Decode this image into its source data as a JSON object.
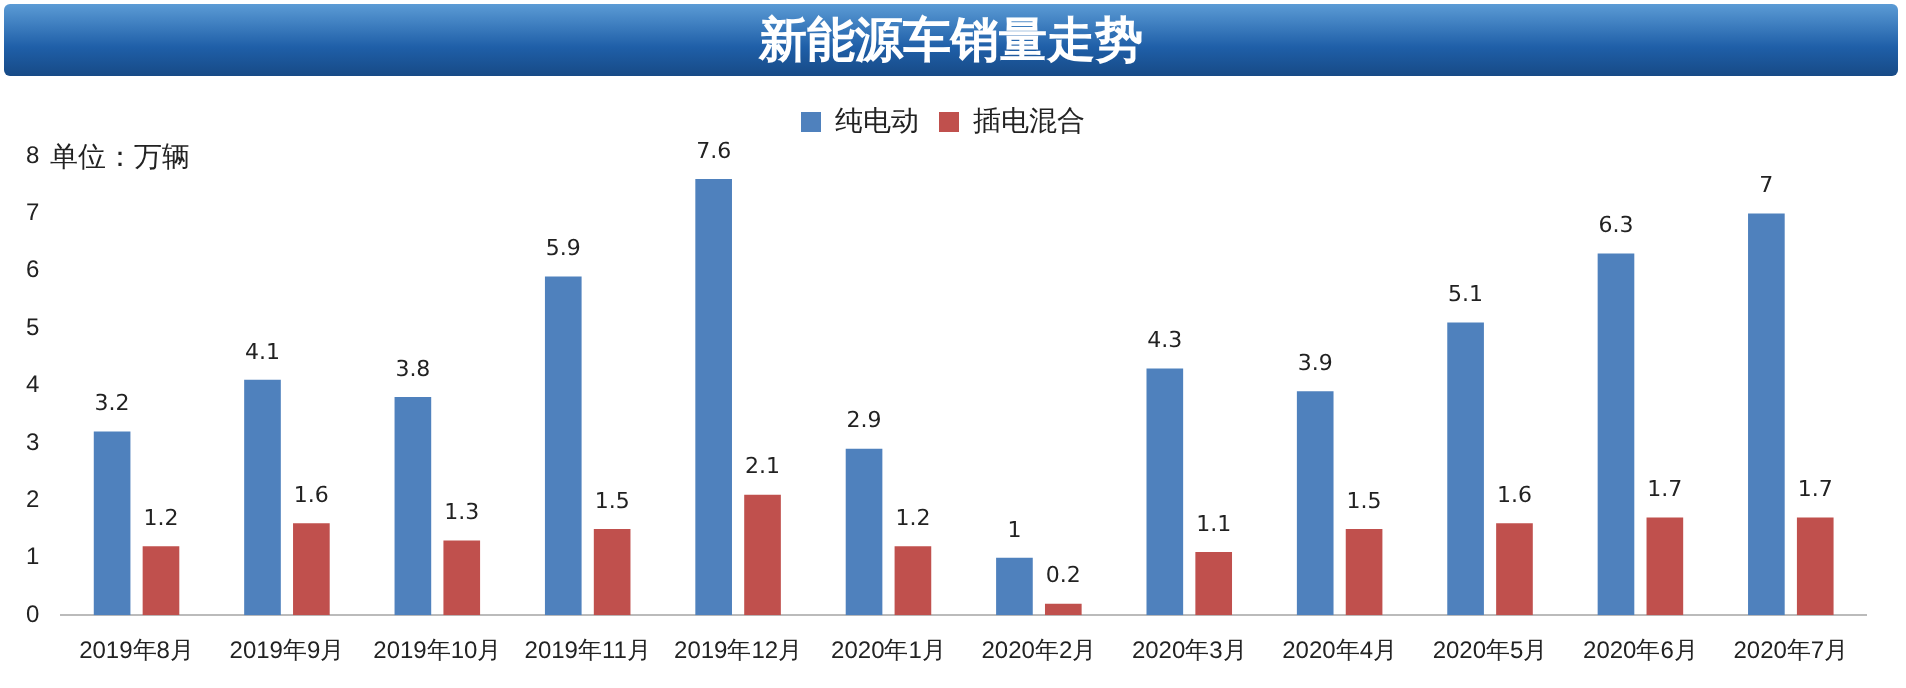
{
  "chart_data": {
    "type": "bar",
    "title": "新能源车销量走势",
    "ylabel": "单位：万辆",
    "categories": [
      "2019年8月",
      "2019年9月",
      "2019年10月",
      "2019年11月",
      "2019年12月",
      "2020年1月",
      "2020年2月",
      "2020年3月",
      "2020年4月",
      "2020年5月",
      "2020年6月",
      "2020年7月"
    ],
    "series": [
      {
        "name": "纯电动",
        "color": "#4f81bd",
        "values": [
          3.2,
          4.1,
          3.8,
          5.9,
          7.6,
          2.9,
          1,
          4.3,
          3.9,
          5.1,
          6.3,
          7
        ]
      },
      {
        "name": "插电混合",
        "color": "#c0504d",
        "values": [
          1.2,
          1.6,
          1.3,
          1.5,
          2.1,
          1.2,
          0.2,
          1.1,
          1.5,
          1.6,
          1.7,
          1.7
        ]
      }
    ],
    "ylim": [
      0,
      8
    ],
    "yticks": [
      0,
      1,
      2,
      3,
      4,
      5,
      6,
      7,
      8
    ],
    "grid": false,
    "legend": "top",
    "data_labels": true
  }
}
